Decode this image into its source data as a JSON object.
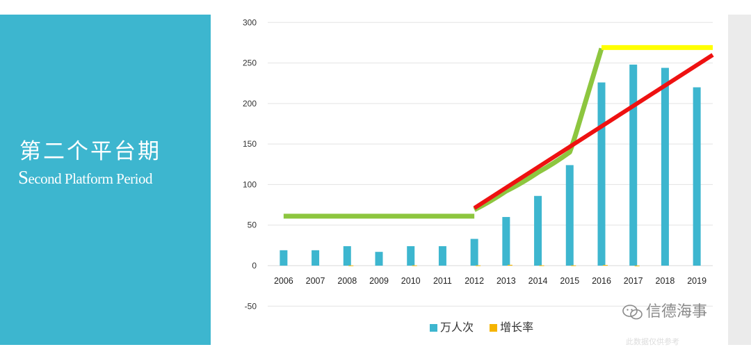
{
  "title": {
    "cn": "第二个平台期",
    "en_first": "S",
    "en_rest": "econd Platform Period"
  },
  "watermark": {
    "text": "信德海事",
    "faint_text": "此数据仅供参考"
  },
  "colors": {
    "panel": "#3db6cf",
    "bar_main": "#3db6cf",
    "bar_growth": "#f5b400",
    "trend_green": "#8dc63f",
    "trend_red": "#ee1111",
    "trend_yellow": "#ffff00",
    "grid": "#e3e3e3"
  },
  "chart_data": {
    "type": "bar",
    "categories": [
      "2006",
      "2007",
      "2008",
      "2009",
      "2010",
      "2011",
      "2012",
      "2013",
      "2014",
      "2015",
      "2016",
      "2017",
      "2018",
      "2019"
    ],
    "series": [
      {
        "name": "万人次",
        "values": [
          19,
          19,
          24,
          17,
          24,
          24,
          33,
          60,
          86,
          124,
          226,
          248,
          244,
          220
        ]
      },
      {
        "name": "增长率",
        "values": [
          0,
          0,
          0.3,
          0,
          0.4,
          0,
          0.4,
          1.0,
          0.4,
          0.4,
          0.8,
          0.1,
          0,
          0
        ]
      }
    ],
    "ylim": [
      -50,
      300
    ],
    "yticks": [
      -50,
      0,
      50,
      100,
      150,
      200,
      250,
      300
    ],
    "grid": true,
    "legend": "bottom",
    "annotations": [
      {
        "type": "line",
        "color": "green",
        "label": "",
        "points": [
          [
            2006,
            61
          ],
          [
            2012,
            61
          ]
        ]
      },
      {
        "type": "curve",
        "color": "green",
        "label": "",
        "points": [
          [
            2012,
            69
          ],
          [
            2013,
            92
          ],
          [
            2014,
            115
          ],
          [
            2015,
            140
          ],
          [
            2015.25,
            170
          ],
          [
            2016,
            268
          ]
        ]
      },
      {
        "type": "line",
        "color": "red",
        "label": "",
        "points": [
          [
            2012,
            71
          ],
          [
            2019.5,
            260
          ]
        ]
      },
      {
        "type": "line",
        "color": "yellow",
        "label": "",
        "points": [
          [
            2016,
            269
          ],
          [
            2019.5,
            269
          ]
        ]
      }
    ]
  }
}
